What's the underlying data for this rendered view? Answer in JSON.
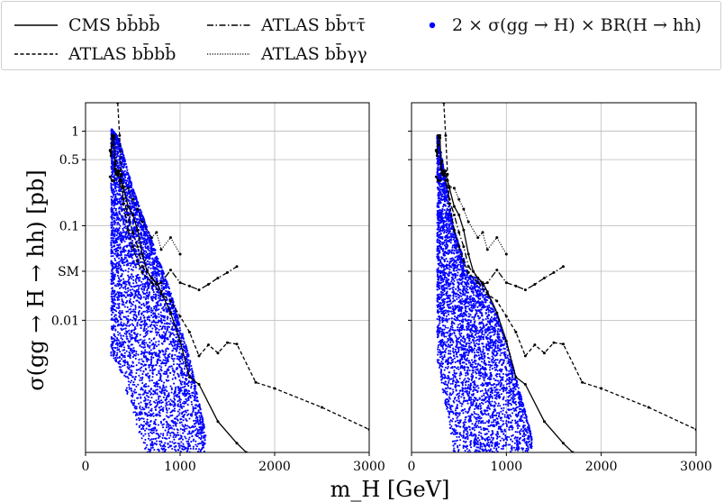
{
  "legend": {
    "entries": [
      {
        "id": "cms_bbbb",
        "label": "CMS bb̄bb̄",
        "style": "solid",
        "color": "#000000"
      },
      {
        "id": "atlas_bbbb",
        "label": "ATLAS bb̄bb̄",
        "style": "dashed",
        "color": "#000000"
      },
      {
        "id": "atlas_bbtautau",
        "label": "ATLAS bb̄ττ̄",
        "style": "dashdot",
        "color": "#000000"
      },
      {
        "id": "atlas_bbgg",
        "label": "ATLAS bb̄γγ",
        "style": "dotted",
        "color": "#000000"
      },
      {
        "id": "scan",
        "label": "2 × σ(gg → H) × BR(H → hh)",
        "style": "marker",
        "color": "#0000ff"
      }
    ]
  },
  "chart_data": [
    {
      "type": "scatter",
      "panel": "left",
      "xlabel": "m_H [GeV]",
      "ylabel": "σ(gg → H → hh) [pb]",
      "xlim": [
        0,
        3000
      ],
      "ylim": [
        0.0004,
        2.0
      ],
      "yscale": "log",
      "grid": true,
      "xticks": [
        0,
        1000,
        2000,
        3000
      ],
      "yticks": [
        {
          "value": 1,
          "label": "1"
        },
        {
          "value": 0.5,
          "label": "0.5"
        },
        {
          "value": 0.1,
          "label": "0.1"
        },
        {
          "value": 0.033,
          "label": "SM"
        },
        {
          "value": 0.01,
          "label": "0.01"
        }
      ],
      "scatter": {
        "color": "#0000ff",
        "seed": 7,
        "mode": "left",
        "band_upper": [
          [
            280,
            1.05
          ],
          [
            350,
            0.85
          ],
          [
            500,
            0.25
          ],
          [
            700,
            0.07
          ],
          [
            900,
            0.02
          ],
          [
            1100,
            0.004
          ],
          [
            1250,
            0.0008
          ],
          [
            1300,
            0.0004
          ]
        ]
      },
      "series": [
        {
          "id": "cms_bbbb",
          "style": "solid",
          "points": [
            [
              260,
              0.62
            ],
            [
              270,
              0.55
            ],
            [
              280,
              0.9
            ],
            [
              300,
              0.85
            ],
            [
              310,
              0.4
            ],
            [
              330,
              0.35
            ],
            [
              350,
              0.38
            ],
            [
              400,
              0.25
            ],
            [
              450,
              0.16
            ],
            [
              500,
              0.13
            ],
            [
              550,
              0.09
            ],
            [
              600,
              0.05
            ],
            [
              650,
              0.033
            ],
            [
              700,
              0.028
            ],
            [
              750,
              0.025
            ],
            [
              800,
              0.02
            ],
            [
              900,
              0.012
            ],
            [
              1000,
              0.006
            ],
            [
              1100,
              0.0025
            ],
            [
              1200,
              0.0021
            ],
            [
              1400,
              0.00085
            ],
            [
              1600,
              0.0005
            ],
            [
              1700,
              0.0004
            ]
          ]
        },
        {
          "id": "atlas_bbbb",
          "style": "dashed",
          "points": [
            [
              340,
              2.0
            ],
            [
              360,
              0.9
            ],
            [
              380,
              0.35
            ],
            [
              400,
              0.17
            ],
            [
              450,
              0.09
            ],
            [
              500,
              0.06
            ],
            [
              550,
              0.042
            ],
            [
              600,
              0.032
            ],
            [
              700,
              0.025
            ],
            [
              800,
              0.019
            ],
            [
              900,
              0.016
            ],
            [
              1000,
              0.011
            ],
            [
              1100,
              0.0075
            ],
            [
              1200,
              0.0042
            ],
            [
              1300,
              0.0055
            ],
            [
              1400,
              0.0045
            ],
            [
              1500,
              0.0058
            ],
            [
              1600,
              0.0056
            ],
            [
              1800,
              0.0022
            ],
            [
              2000,
              0.0019
            ],
            [
              2500,
              0.0012
            ],
            [
              3000,
              0.0007
            ]
          ]
        },
        {
          "id": "atlas_bbtautau",
          "style": "dashdot",
          "points": [
            [
              260,
              0.33
            ],
            [
              280,
              0.3
            ],
            [
              300,
              0.3
            ],
            [
              320,
              0.36
            ],
            [
              340,
              0.34
            ],
            [
              360,
              0.3
            ],
            [
              400,
              0.19
            ],
            [
              450,
              0.13
            ],
            [
              500,
              0.085
            ],
            [
              550,
              0.06
            ],
            [
              600,
              0.037
            ],
            [
              700,
              0.028
            ],
            [
              750,
              0.024
            ],
            [
              800,
              0.025
            ],
            [
              900,
              0.034
            ],
            [
              1000,
              0.025
            ],
            [
              1100,
              0.023
            ],
            [
              1200,
              0.021
            ],
            [
              1300,
              0.024
            ],
            [
              1400,
              0.028
            ],
            [
              1500,
              0.032
            ],
            [
              1600,
              0.037
            ]
          ]
        },
        {
          "id": "atlas_bbgg",
          "style": "dotted",
          "points": [
            [
              260,
              0.63
            ],
            [
              270,
              0.6
            ],
            [
              280,
              0.72
            ],
            [
              290,
              0.9
            ],
            [
              300,
              0.9
            ],
            [
              310,
              0.45
            ],
            [
              320,
              0.48
            ],
            [
              330,
              0.38
            ],
            [
              340,
              0.35
            ],
            [
              360,
              0.38
            ],
            [
              380,
              0.3
            ],
            [
              400,
              0.26
            ],
            [
              450,
              0.25
            ],
            [
              500,
              0.19
            ],
            [
              550,
              0.15
            ],
            [
              600,
              0.11
            ],
            [
              700,
              0.075
            ],
            [
              750,
              0.085
            ],
            [
              800,
              0.056
            ],
            [
              900,
              0.075
            ],
            [
              1000,
              0.05
            ]
          ]
        }
      ]
    },
    {
      "type": "scatter",
      "panel": "right",
      "xlabel": "m_H [GeV]",
      "ylabel": "",
      "xlim": [
        0,
        3000
      ],
      "ylim": [
        0.0004,
        2.0
      ],
      "yscale": "log",
      "grid": true,
      "xticks": [
        0,
        1000,
        2000,
        3000
      ],
      "yticks": [],
      "scatter": {
        "color": "#0000ff",
        "seed": 11,
        "mode": "right",
        "band_upper": [
          [
            280,
            0.9
          ],
          [
            350,
            0.35
          ],
          [
            450,
            0.09
          ],
          [
            550,
            0.045
          ],
          [
            600,
            0.03
          ],
          [
            700,
            0.028
          ],
          [
            800,
            0.02
          ],
          [
            900,
            0.012
          ],
          [
            1000,
            0.006
          ],
          [
            1100,
            0.0025
          ],
          [
            1250,
            0.0007
          ],
          [
            1300,
            0.0004
          ]
        ]
      },
      "series": [
        {
          "id": "cms_bbbb",
          "style": "solid",
          "points": [
            [
              260,
              0.62
            ],
            [
              270,
              0.55
            ],
            [
              280,
              0.9
            ],
            [
              300,
              0.85
            ],
            [
              310,
              0.4
            ],
            [
              330,
              0.35
            ],
            [
              350,
              0.38
            ],
            [
              400,
              0.25
            ],
            [
              450,
              0.16
            ],
            [
              500,
              0.13
            ],
            [
              550,
              0.09
            ],
            [
              600,
              0.05
            ],
            [
              650,
              0.033
            ],
            [
              700,
              0.028
            ],
            [
              750,
              0.025
            ],
            [
              800,
              0.02
            ],
            [
              900,
              0.012
            ],
            [
              1000,
              0.006
            ],
            [
              1100,
              0.0025
            ],
            [
              1200,
              0.0021
            ],
            [
              1400,
              0.00085
            ],
            [
              1600,
              0.0005
            ],
            [
              1700,
              0.0004
            ]
          ]
        },
        {
          "id": "atlas_bbbb",
          "style": "dashed",
          "points": [
            [
              340,
              2.0
            ],
            [
              360,
              0.9
            ],
            [
              380,
              0.35
            ],
            [
              400,
              0.17
            ],
            [
              450,
              0.09
            ],
            [
              500,
              0.06
            ],
            [
              550,
              0.042
            ],
            [
              600,
              0.032
            ],
            [
              700,
              0.025
            ],
            [
              800,
              0.019
            ],
            [
              900,
              0.016
            ],
            [
              1000,
              0.011
            ],
            [
              1100,
              0.0075
            ],
            [
              1200,
              0.0042
            ],
            [
              1300,
              0.0055
            ],
            [
              1400,
              0.0045
            ],
            [
              1500,
              0.0058
            ],
            [
              1600,
              0.0056
            ],
            [
              1800,
              0.0022
            ],
            [
              2000,
              0.0019
            ],
            [
              2500,
              0.0012
            ],
            [
              3000,
              0.0007
            ]
          ]
        },
        {
          "id": "atlas_bbtautau",
          "style": "dashdot",
          "points": [
            [
              260,
              0.33
            ],
            [
              280,
              0.3
            ],
            [
              300,
              0.3
            ],
            [
              320,
              0.36
            ],
            [
              340,
              0.34
            ],
            [
              360,
              0.3
            ],
            [
              400,
              0.19
            ],
            [
              450,
              0.13
            ],
            [
              500,
              0.085
            ],
            [
              550,
              0.06
            ],
            [
              600,
              0.037
            ],
            [
              700,
              0.028
            ],
            [
              750,
              0.024
            ],
            [
              800,
              0.025
            ],
            [
              900,
              0.034
            ],
            [
              1000,
              0.025
            ],
            [
              1100,
              0.023
            ],
            [
              1200,
              0.021
            ],
            [
              1300,
              0.024
            ],
            [
              1400,
              0.028
            ],
            [
              1500,
              0.032
            ],
            [
              1600,
              0.037
            ]
          ]
        },
        {
          "id": "atlas_bbgg",
          "style": "dotted",
          "points": [
            [
              260,
              0.63
            ],
            [
              270,
              0.6
            ],
            [
              280,
              0.72
            ],
            [
              290,
              0.9
            ],
            [
              300,
              0.9
            ],
            [
              310,
              0.45
            ],
            [
              320,
              0.48
            ],
            [
              330,
              0.38
            ],
            [
              340,
              0.35
            ],
            [
              360,
              0.38
            ],
            [
              380,
              0.3
            ],
            [
              400,
              0.26
            ],
            [
              450,
              0.25
            ],
            [
              500,
              0.19
            ],
            [
              550,
              0.15
            ],
            [
              600,
              0.11
            ],
            [
              700,
              0.075
            ],
            [
              750,
              0.085
            ],
            [
              800,
              0.056
            ],
            [
              900,
              0.075
            ],
            [
              1000,
              0.05
            ]
          ]
        }
      ]
    }
  ]
}
